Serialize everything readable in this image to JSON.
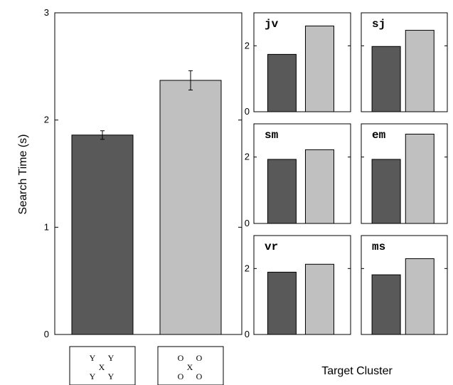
{
  "chart_data": [
    {
      "type": "bar",
      "ylabel": "Search Time (s)",
      "ylim": [
        0,
        3
      ],
      "yticks": [
        "0",
        "1",
        "2",
        "3"
      ],
      "categories": [
        "Y X Y / Y Y",
        "O X O / O O"
      ],
      "values": [
        1.86,
        2.37
      ],
      "error": [
        0.04,
        0.09
      ],
      "colors": [
        "#595959",
        "#c0c0c0"
      ],
      "category_icons": [
        {
          "letters": [
            "Y",
            "Y",
            "X",
            "Y",
            "Y"
          ]
        },
        {
          "letters": [
            "O",
            "O",
            "X",
            "O",
            "O"
          ]
        }
      ]
    },
    {
      "type": "bar",
      "layout": "small-multiples 3x2",
      "xlabel": "Target Cluster",
      "ylim": [
        0,
        3
      ],
      "yticks": [
        "0",
        "2"
      ],
      "colors": [
        "#595959",
        "#c0c0c0"
      ],
      "panels": [
        {
          "label": "jv",
          "values": [
            1.74,
            2.6
          ]
        },
        {
          "label": "sj",
          "values": [
            1.98,
            2.47
          ]
        },
        {
          "label": "sm",
          "values": [
            1.93,
            2.22
          ]
        },
        {
          "label": "em",
          "values": [
            1.93,
            2.69
          ]
        },
        {
          "label": "vr",
          "values": [
            1.89,
            2.13
          ]
        },
        {
          "label": "ms",
          "values": [
            1.81,
            2.3
          ]
        }
      ]
    }
  ]
}
